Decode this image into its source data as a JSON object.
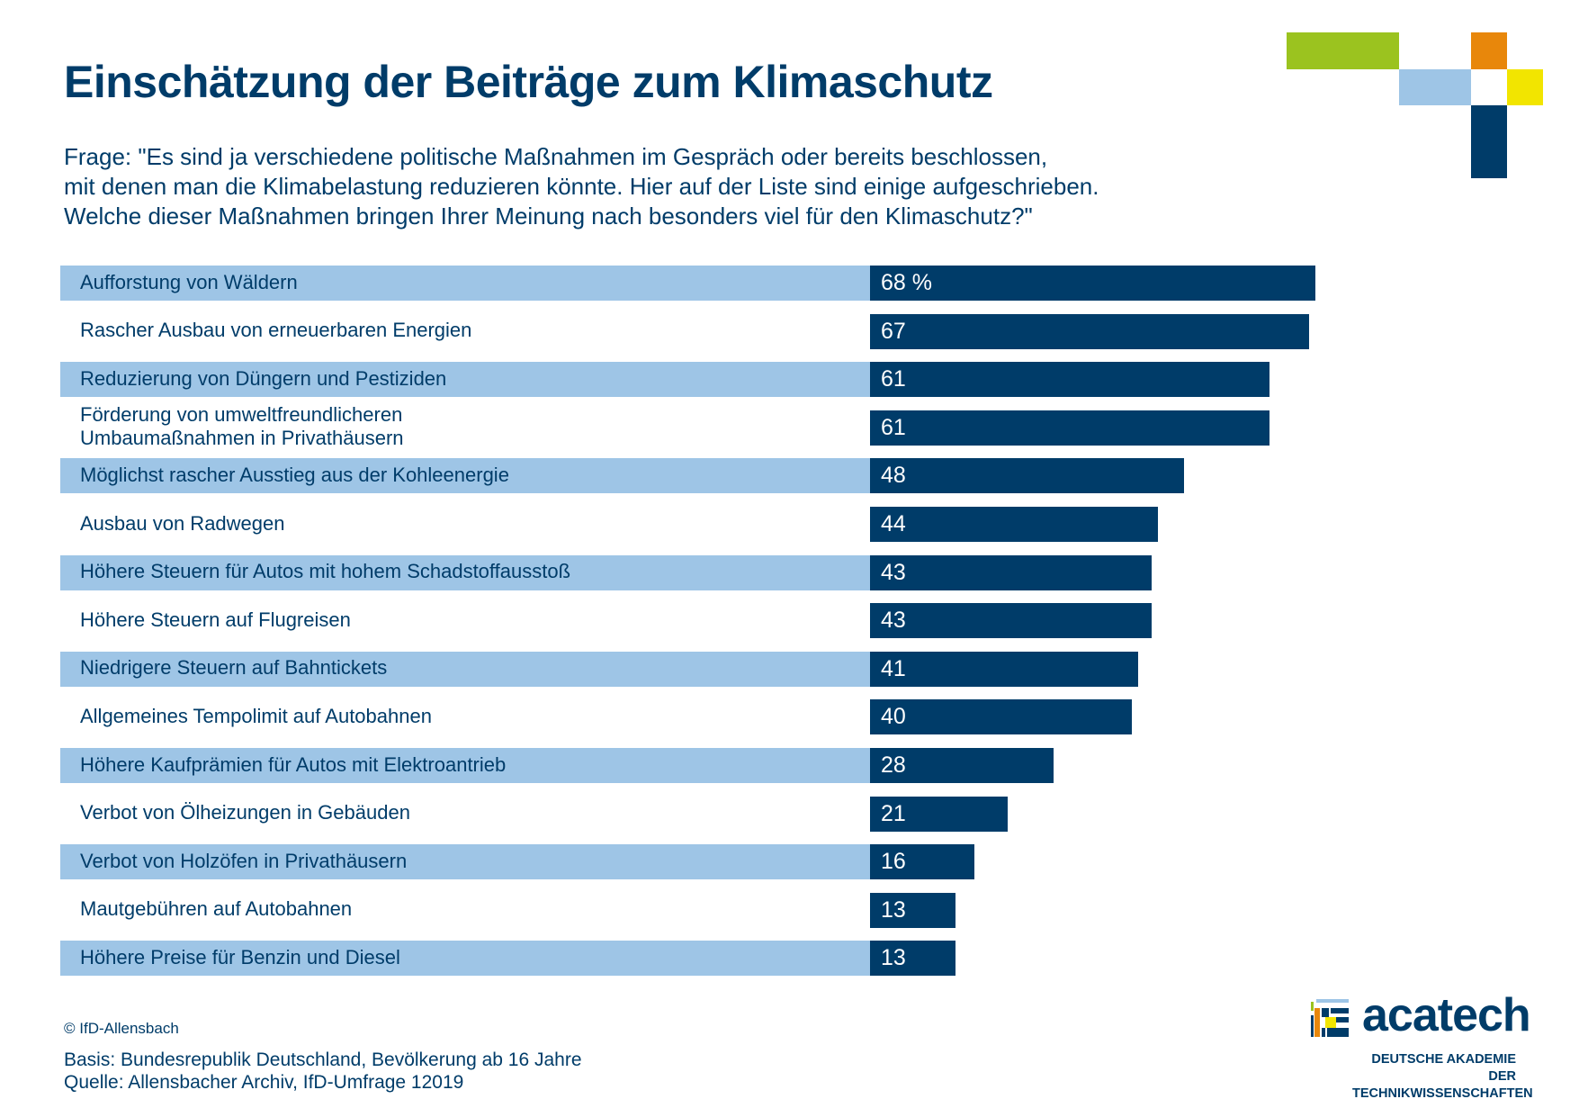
{
  "header": {
    "title": "Einschätzung der Beiträge zum Klimaschutz",
    "question_lines": [
      "Frage: \"Es sind ja verschiedene politische Maßnahmen im Gespräch oder bereits beschlossen,",
      "mit denen man die Klimabelastung reduzieren könnte. Hier auf der Liste sind einige aufgeschrieben.",
      "Welche dieser Maßnahmen bringen Ihrer Meinung nach besonders viel für den Klimaschutz?\""
    ]
  },
  "colors": {
    "dark_blue": "#003c69",
    "light_blue": "#9ec5e6",
    "green": "#9bc31f",
    "orange": "#e8870b",
    "yellow": "#f2e500"
  },
  "chart_data": {
    "type": "bar",
    "orientation": "horizontal",
    "title": "Einschätzung der Beiträge zum Klimaschutz",
    "xlabel": "",
    "ylabel": "",
    "unit": "%",
    "xlim": [
      0,
      100
    ],
    "grid": false,
    "categories": [
      [
        "Aufforstung von Wäldern"
      ],
      [
        "Rascher Ausbau von erneuerbaren Energien"
      ],
      [
        "Reduzierung von Düngern und Pestiziden"
      ],
      [
        "Förderung von umweltfreundlicheren",
        "Umbaumaßnahmen in Privathäusern"
      ],
      [
        "Möglichst rascher Ausstieg aus der Kohleenergie"
      ],
      [
        "Ausbau von Radwegen"
      ],
      [
        "Höhere Steuern für Autos mit hohem Schadstoffausstoß"
      ],
      [
        "Höhere Steuern auf Flugreisen"
      ],
      [
        "Niedrigere Steuern auf Bahntickets"
      ],
      [
        "Allgemeines Tempolimit auf Autobahnen"
      ],
      [
        "Höhere Kaufprämien für Autos mit Elektroantrieb"
      ],
      [
        "Verbot von Ölheizungen in Gebäuden"
      ],
      [
        "Verbot von Holzöfen in Privathäusern"
      ],
      [
        "Mautgebühren auf Autobahnen"
      ],
      [
        "Höhere Preise für Benzin und Diesel"
      ]
    ],
    "values": [
      68,
      67,
      61,
      61,
      48,
      44,
      43,
      43,
      41,
      40,
      28,
      21,
      16,
      13,
      13
    ],
    "data_labels": [
      "68 %",
      "67",
      "61",
      "61",
      "48",
      "44",
      "43",
      "43",
      "41",
      "40",
      "28",
      "21",
      "16",
      "13",
      "13"
    ],
    "striped_rows": "alternating, starting with first row"
  },
  "footer": {
    "copyright": "© IfD-Allensbach",
    "basis": "Basis: Bundesrepublik Deutschland, Bevölkerung ab 16 Jahre",
    "source": "Quelle: Allensbacher Archiv, IfD-Umfrage 12019"
  },
  "logo": {
    "name": "acatech",
    "subtitle_lines": [
      "DEUTSCHE AKADEMIE DER",
      "TECHNIKWISSENSCHAFTEN"
    ]
  }
}
